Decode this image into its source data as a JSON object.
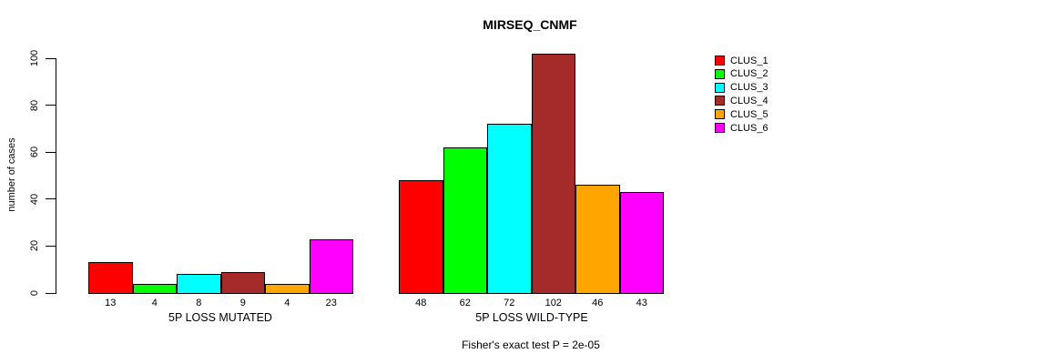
{
  "chart_data": {
    "type": "bar",
    "title": "MIRSEQ_CNMF",
    "ylabel": "number of cases",
    "ylim": [
      0,
      100
    ],
    "yticks": [
      0,
      20,
      40,
      60,
      80,
      100
    ],
    "grid": false,
    "legend_position": "right",
    "bar_border_color": "#000000",
    "clusters": [
      {
        "name": "CLUS_1",
        "color": "#FF0000"
      },
      {
        "name": "CLUS_2",
        "color": "#00FF00"
      },
      {
        "name": "CLUS_3",
        "color": "#00FFFF"
      },
      {
        "name": "CLUS_4",
        "color": "#A52A2A"
      },
      {
        "name": "CLUS_5",
        "color": "#FFA500"
      },
      {
        "name": "CLUS_6",
        "color": "#FF00FF"
      }
    ],
    "groups": [
      {
        "label": "5P LOSS MUTATED",
        "values": [
          13,
          4,
          8,
          9,
          4,
          23
        ]
      },
      {
        "label": "5P LOSS WILD-TYPE",
        "values": [
          48,
          62,
          72,
          102,
          46,
          43
        ]
      }
    ],
    "annotation": "Fisher's exact test P = 2e-05"
  }
}
